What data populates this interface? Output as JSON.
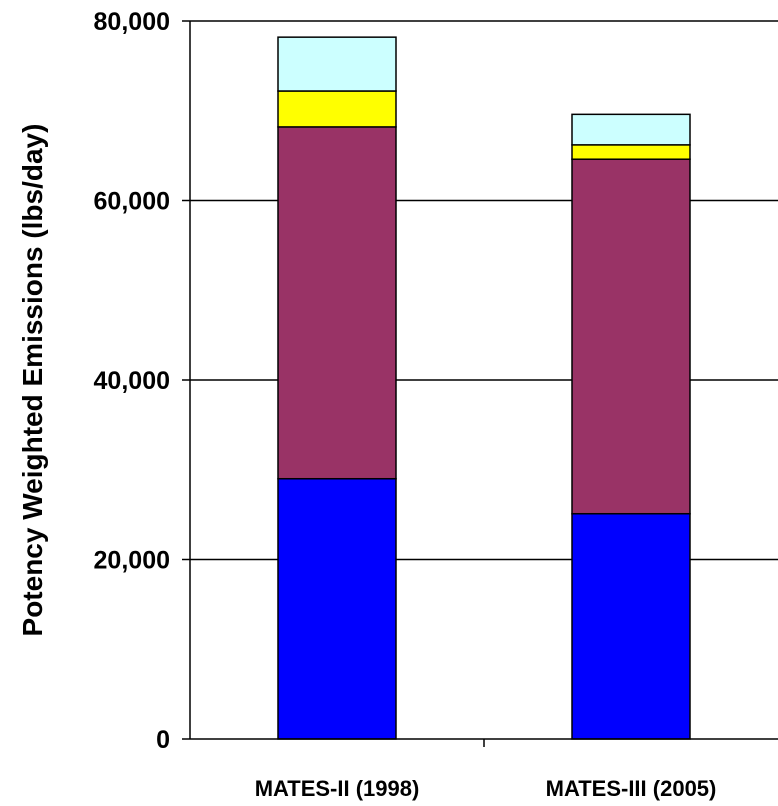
{
  "chart_data": {
    "type": "bar",
    "stacked": true,
    "categories": [
      "MATES-II (1998)",
      "MATES-III (2005)"
    ],
    "series": [
      {
        "values": [
          29000,
          25100
        ],
        "color": "#0000ff"
      },
      {
        "values": [
          39200,
          39500
        ],
        "color": "#993366"
      },
      {
        "values": [
          4000,
          1600
        ],
        "color": "#ffff00"
      },
      {
        "values": [
          6000,
          3400
        ],
        "color": "#ccffff"
      }
    ],
    "title": "",
    "xlabel": "",
    "ylabel": "Potency Weighted Emissions (lbs/day)",
    "ylim": [
      0,
      80000
    ],
    "yticks": [
      0,
      20000,
      40000,
      60000,
      80000
    ],
    "ytick_labels": [
      "0",
      "20,000",
      "40,000",
      "60,000",
      "80,000"
    ],
    "grid": "horizontal",
    "legend": "none"
  }
}
